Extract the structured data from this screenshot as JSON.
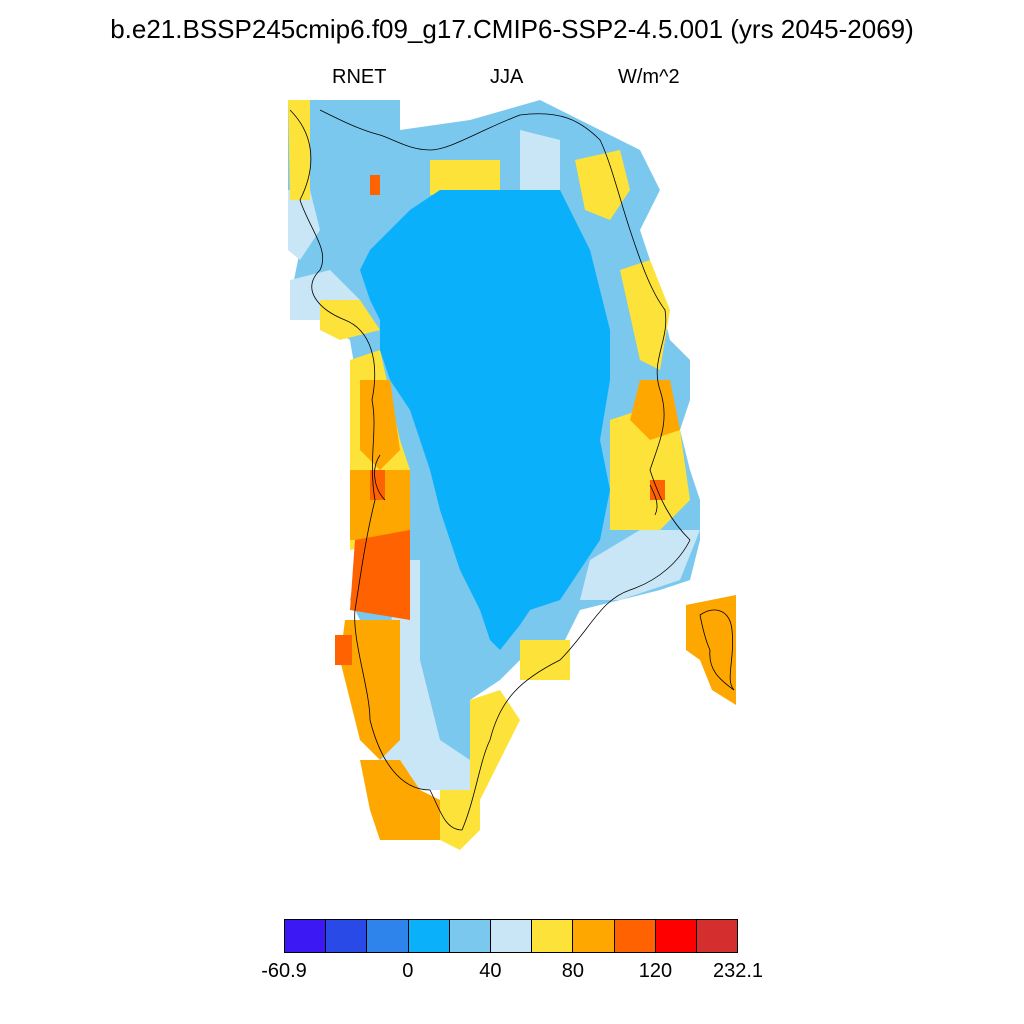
{
  "figure": {
    "title": "b.e21.BSSP245cmip6.f09_g17.CMIP6-SSP2-4.5.001 (yrs 2045-2069)",
    "left_string": "RNET",
    "center_string": "JJA",
    "right_string": "W/m^2"
  },
  "colorbar": {
    "colors": [
      "#3c18f5",
      "#2a4ae8",
      "#2f84ec",
      "#0bb0fb",
      "#7ac8ee",
      "#c9e6f6",
      "#fde23a",
      "#fda700",
      "#ff6200",
      "#ff0000",
      "#d42e2e"
    ],
    "labels": [
      "-60.9",
      "0",
      "40",
      "80",
      "120",
      "232.1"
    ],
    "label_boundary_index": [
      0,
      3,
      5,
      7,
      9,
      11
    ]
  },
  "map": {
    "region": "Greenland",
    "coastline": true
  }
}
